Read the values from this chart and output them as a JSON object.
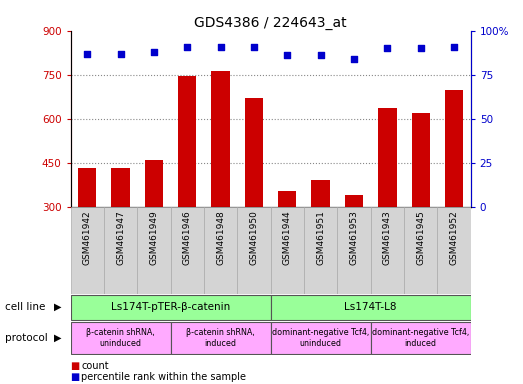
{
  "title": "GDS4386 / 224643_at",
  "samples": [
    "GSM461942",
    "GSM461947",
    "GSM461949",
    "GSM461946",
    "GSM461948",
    "GSM461950",
    "GSM461944",
    "GSM461951",
    "GSM461953",
    "GSM461943",
    "GSM461945",
    "GSM461952"
  ],
  "counts": [
    432,
    432,
    462,
    747,
    764,
    672,
    357,
    392,
    342,
    637,
    622,
    697
  ],
  "percentile_ranks": [
    87,
    87,
    88,
    91,
    91,
    91,
    86,
    86,
    84,
    90,
    90,
    91
  ],
  "ymin": 300,
  "ymax": 900,
  "yticks": [
    300,
    450,
    600,
    750,
    900
  ],
  "right_yticks": [
    0,
    25,
    50,
    75,
    100
  ],
  "bar_color": "#cc0000",
  "dot_color": "#0000cc",
  "grid_color": "#888888",
  "cell_line_groups": [
    {
      "label": "Ls174T-pTER-β-catenin",
      "start": 0,
      "end": 5,
      "color": "#99ff99"
    },
    {
      "label": "Ls174T-L8",
      "start": 6,
      "end": 11,
      "color": "#99ff99"
    }
  ],
  "protocol_groups": [
    {
      "label": "β-catenin shRNA,\nuninduced",
      "start": 0,
      "end": 2,
      "color": "#ffaaff"
    },
    {
      "label": "β-catenin shRNA,\ninduced",
      "start": 3,
      "end": 5,
      "color": "#ffaaff"
    },
    {
      "label": "dominant-negative Tcf4,\nuninduced",
      "start": 6,
      "end": 8,
      "color": "#ffaaff"
    },
    {
      "label": "dominant-negative Tcf4,\ninduced",
      "start": 9,
      "end": 11,
      "color": "#ffaaff"
    }
  ],
  "cell_line_label": "cell line",
  "protocol_label": "protocol",
  "legend_count_label": "count",
  "legend_percentile_label": "percentile rank within the sample",
  "bg_color": "#ffffff",
  "xticklabel_area_color": "#d4d4d4"
}
